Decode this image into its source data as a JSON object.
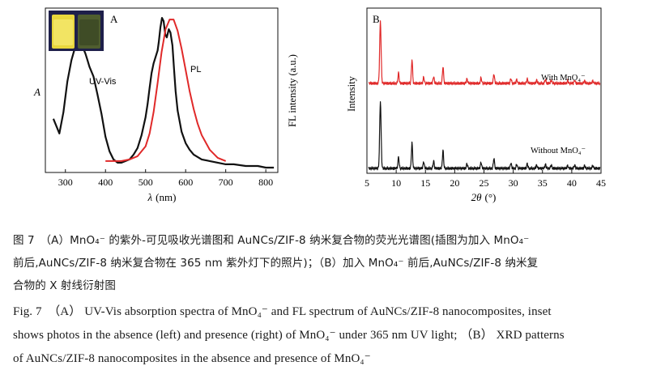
{
  "chart_data": [
    {
      "type": "line",
      "panel_label": "A",
      "xlabel_symbol": "λ",
      "xlabel_unit": "(nm)",
      "ylabel": "A",
      "y2label": "FL intensity (a.u.)",
      "xlim": [
        250,
        830
      ],
      "xticks": [
        "300",
        "400",
        "500",
        "600",
        "700",
        "800"
      ],
      "xtick_values": [
        300,
        400,
        500,
        600,
        700,
        800
      ],
      "ylim": [
        0,
        1
      ],
      "series": [
        {
          "name": "UV-Vis",
          "color": "#111111",
          "x": [
            270,
            285,
            295,
            305,
            315,
            322,
            330,
            338,
            345,
            350,
            355,
            360,
            370,
            380,
            390,
            400,
            410,
            420,
            430,
            440,
            450,
            460,
            470,
            480,
            490,
            500,
            505,
            510,
            515,
            520,
            525,
            530,
            533,
            537,
            541,
            545,
            549,
            553,
            558,
            562,
            567,
            571,
            575,
            580,
            590,
            600,
            610,
            620,
            640,
            660,
            680,
            700,
            720,
            750,
            780,
            800,
            820
          ],
          "y": [
            0.33,
            0.24,
            0.37,
            0.56,
            0.69,
            0.75,
            0.79,
            0.78,
            0.76,
            0.73,
            0.69,
            0.65,
            0.59,
            0.48,
            0.36,
            0.22,
            0.13,
            0.08,
            0.06,
            0.06,
            0.07,
            0.08,
            0.11,
            0.15,
            0.23,
            0.34,
            0.42,
            0.52,
            0.61,
            0.67,
            0.71,
            0.75,
            0.8,
            0.89,
            0.95,
            0.93,
            0.85,
            0.83,
            0.88,
            0.86,
            0.78,
            0.64,
            0.5,
            0.38,
            0.25,
            0.18,
            0.14,
            0.11,
            0.08,
            0.07,
            0.06,
            0.05,
            0.05,
            0.04,
            0.04,
            0.03,
            0.03
          ]
        },
        {
          "name": "PL",
          "color": "#e02929",
          "x": [
            400,
            420,
            440,
            460,
            480,
            500,
            510,
            520,
            530,
            540,
            550,
            560,
            570,
            580,
            590,
            600,
            610,
            620,
            630,
            640,
            660,
            680,
            700
          ],
          "y": [
            0.07,
            0.07,
            0.07,
            0.08,
            0.1,
            0.16,
            0.24,
            0.37,
            0.55,
            0.74,
            0.88,
            0.94,
            0.94,
            0.87,
            0.76,
            0.63,
            0.5,
            0.39,
            0.3,
            0.23,
            0.14,
            0.09,
            0.07
          ]
        }
      ],
      "inset": {
        "description_tag": "photo-vials",
        "left_color": "#e8d63c",
        "right_color": "#4f5d2f"
      }
    },
    {
      "type": "line",
      "panel_label": "B",
      "xlabel_symbol": "2θ",
      "xlabel_unit": "(°)",
      "ylabel": "Intensity",
      "xlim": [
        5,
        45
      ],
      "xticks": [
        "5",
        "10",
        "15",
        "20",
        "25",
        "30",
        "35",
        "40",
        "45"
      ],
      "xtick_values": [
        5,
        10,
        15,
        20,
        25,
        30,
        35,
        40,
        45
      ],
      "ylim": [
        0,
        1
      ],
      "series": [
        {
          "name": "With MnO₄⁻",
          "color": "#e02929",
          "baseline": 0.55,
          "peak_scale": 0.38
        },
        {
          "name": "Without MnO₄⁻",
          "color": "#111111",
          "baseline": 0.03,
          "peak_scale": 0.41
        }
      ],
      "peaks": {
        "x": [
          7.3,
          10.4,
          12.7,
          14.7,
          16.4,
          18.0,
          22.1,
          24.5,
          26.7,
          29.6,
          30.6,
          32.4,
          34.0,
          35.5,
          36.5,
          39.3,
          40.5,
          42.2,
          43.6
        ],
        "h": [
          1.0,
          0.17,
          0.38,
          0.1,
          0.11,
          0.27,
          0.07,
          0.09,
          0.15,
          0.08,
          0.06,
          0.07,
          0.05,
          0.06,
          0.05,
          0.04,
          0.05,
          0.04,
          0.04
        ]
      }
    }
  ],
  "caption": {
    "cn_line1": "图 7　（A）MnO₄⁻ 的紫外-可见吸收光谱图和 AuNCs/ZIF-8 纳米复合物的荧光光谱图(插图为加入 MnO₄⁻",
    "cn_line2": "前后,AuNCs/ZIF-8 纳米复合物在 365 nm 紫外灯下的照片)；（B）加入 MnO₄⁻ 前后,AuNCs/ZIF-8 纳米复",
    "cn_line3": "合物的 X 射线衍射图",
    "en_line1": "Fig. 7　（A） UV-Vis absorption spectra of MnO₄⁻ and FL spectrum of AuNCs/ZIF-8 nanocomposites, inset",
    "en_line2": "shows photos in the absence (left) and presence (right) of MnO₄⁻ under 365 nm UV light; （B） XRD patterns",
    "en_line3": "of AuNCs/ZIF-8 nanocomposites in the absence and presence of MnO₄⁻"
  }
}
